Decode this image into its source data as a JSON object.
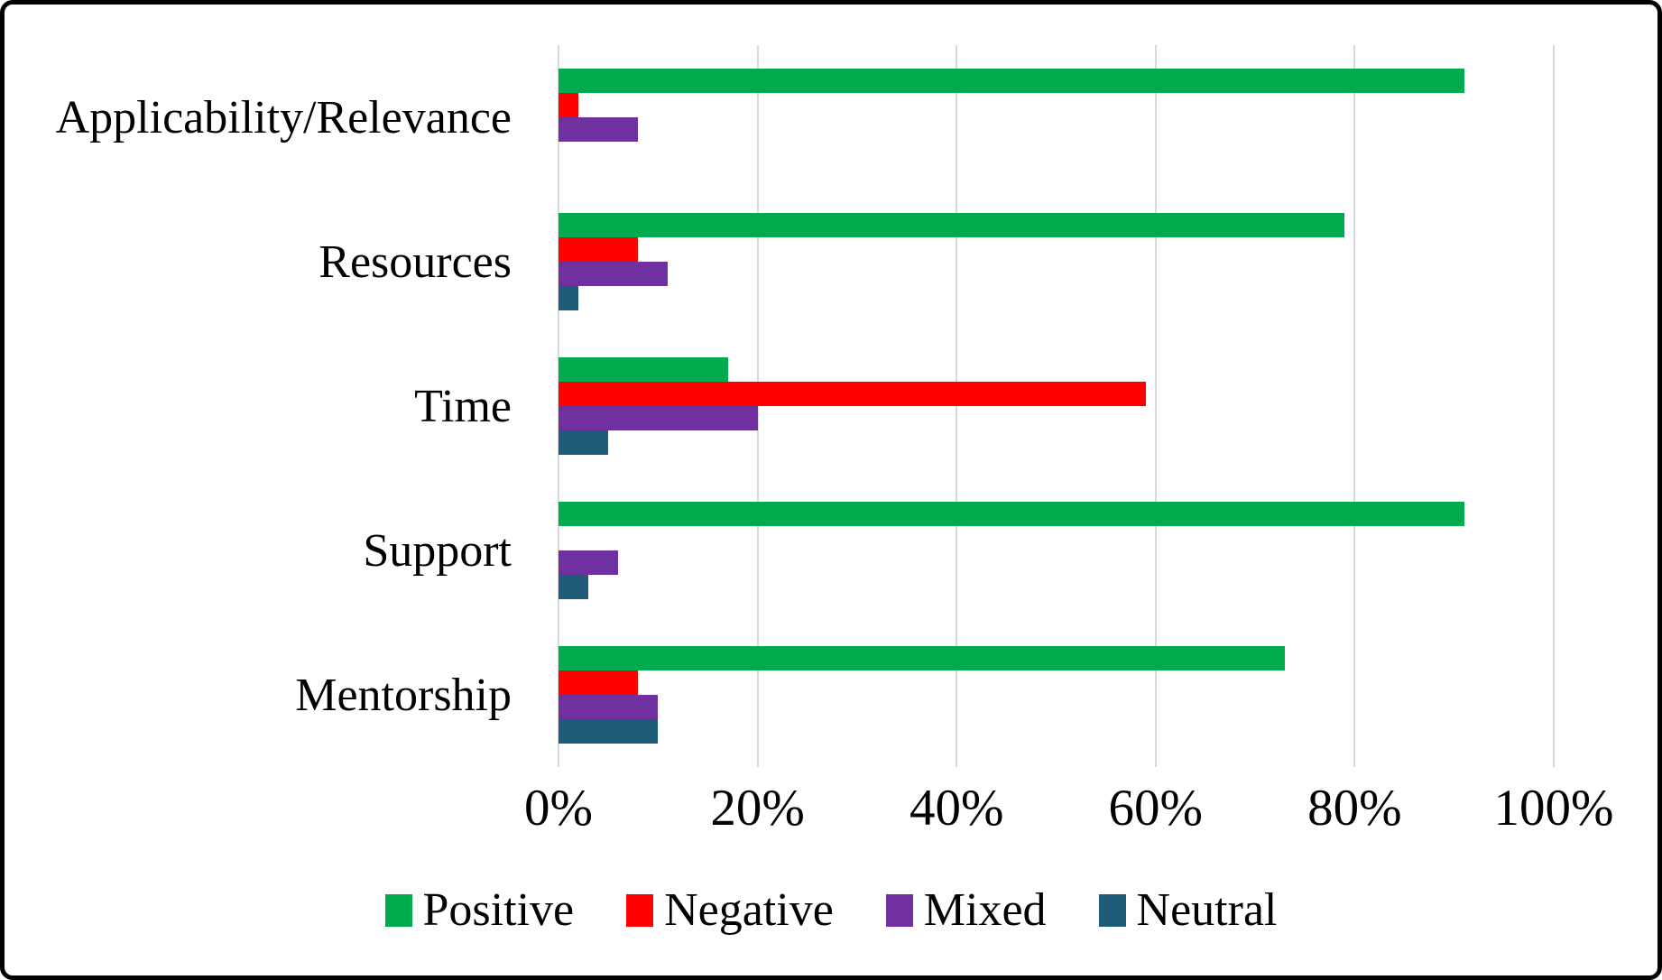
{
  "chart_data": {
    "type": "bar",
    "orientation": "horizontal",
    "title": "",
    "xlabel": "",
    "ylabel": "",
    "xlim": [
      0,
      100
    ],
    "grid": "vertical-gridlines-every-20pct",
    "gridline_color": "#d9d9d9",
    "legend_position": "bottom",
    "categories": [
      "Applicability/Relevance",
      "Resources",
      "Time",
      "Support",
      "Mentorship"
    ],
    "x_ticks": [
      {
        "value": 0,
        "label": "0%"
      },
      {
        "value": 20,
        "label": "20%"
      },
      {
        "value": 40,
        "label": "40%"
      },
      {
        "value": 60,
        "label": "60%"
      },
      {
        "value": 80,
        "label": "80%"
      },
      {
        "value": 100,
        "label": "100%"
      }
    ],
    "series": [
      {
        "name": "Positive",
        "color": "#00ab4e",
        "values": [
          91,
          79,
          17,
          91,
          73
        ]
      },
      {
        "name": "Negative",
        "color": "#ff0000",
        "values": [
          2,
          8,
          59,
          0,
          8
        ]
      },
      {
        "name": "Mixed",
        "color": "#7030a0",
        "values": [
          8,
          11,
          20,
          6,
          10
        ]
      },
      {
        "name": "Neutral",
        "color": "#1f5c78",
        "values": [
          0,
          2,
          5,
          3,
          10
        ]
      }
    ]
  }
}
